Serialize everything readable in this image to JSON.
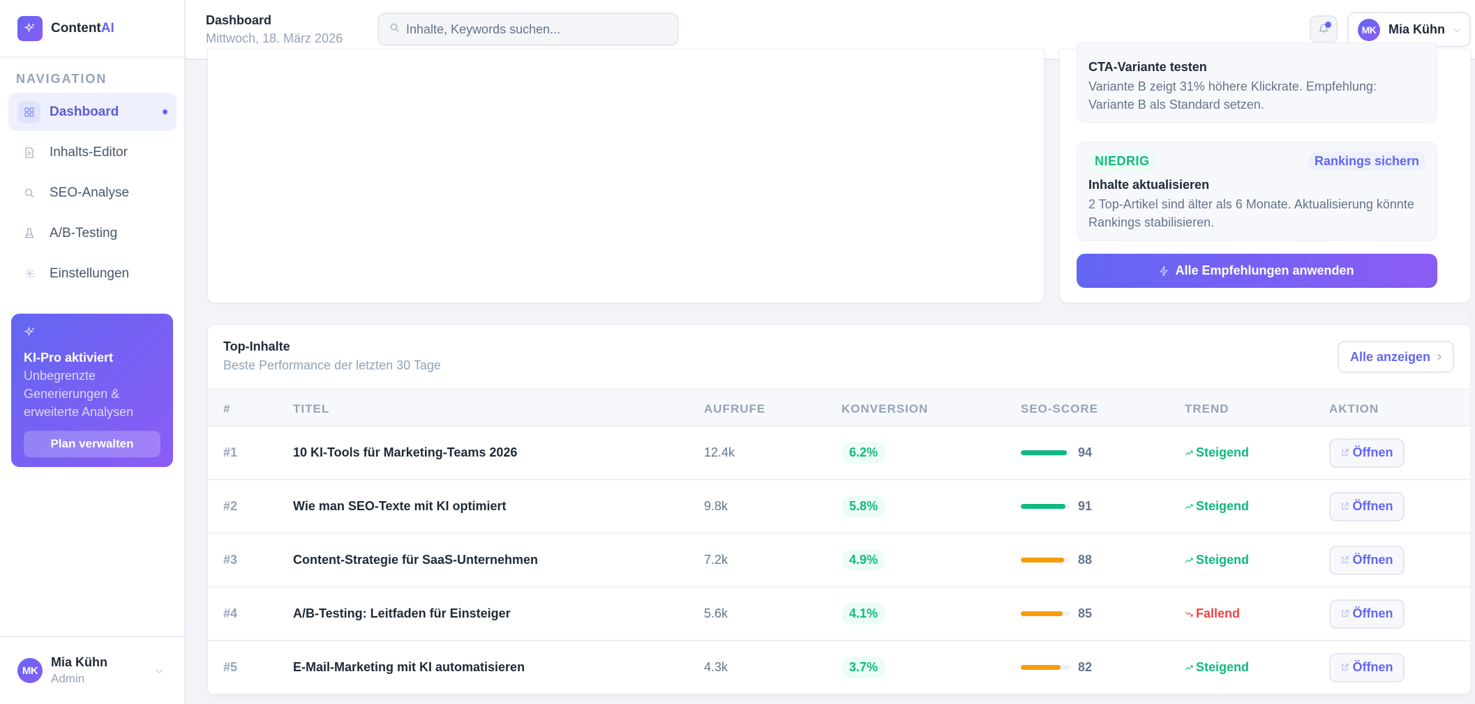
{
  "brand": {
    "name_main": "Content",
    "name_accent": "AI",
    "icon": "sparkles-icon"
  },
  "sidebar": {
    "section_label": "NAVIGATION",
    "items": [
      {
        "label": "Dashboard",
        "icon": "grid-icon",
        "active": true
      },
      {
        "label": "Inhalts-Editor",
        "icon": "document-icon",
        "active": false
      },
      {
        "label": "SEO-Analyse",
        "icon": "search-icon",
        "active": false
      },
      {
        "label": "A/B-Testing",
        "icon": "flask-icon",
        "active": false
      },
      {
        "label": "Einstellungen",
        "icon": "gear-icon",
        "active": false
      }
    ],
    "promo": {
      "title": "KI-Pro aktiviert",
      "text": "Unbegrenzte Generierungen & erweiterte Analysen",
      "button": "Plan verwalten"
    },
    "user": {
      "initials": "MK",
      "name": "Mia Kühn",
      "role": "Admin"
    }
  },
  "header": {
    "title": "Dashboard",
    "date": "Mittwoch, 18. März 2026",
    "search_placeholder": "Inhalte, Keywords suchen...",
    "search_value": "",
    "user": {
      "initials": "MK",
      "name": "Mia Kühn"
    },
    "notifications_unread": true
  },
  "recommendations": {
    "items": [
      {
        "title": "CTA-Variante testen",
        "text": "Variante B zeigt 31% höhere Klickrate. Empfehlung: Variante B als Standard setzen."
      },
      {
        "priority": "NIEDRIG",
        "tag": "Rankings sichern",
        "title": "Inhalte aktualisieren",
        "text": "2 Top-Artikel sind älter als 6 Monate. Aktualisierung könnte Rankings stabilisieren."
      }
    ],
    "apply_all": "Alle Empfehlungen anwenden"
  },
  "top_content": {
    "title": "Top-Inhalte",
    "subtitle": "Beste Performance der letzten 30 Tage",
    "view_all": "Alle anzeigen",
    "columns": [
      "#",
      "TITEL",
      "AUFRUFE",
      "KONVERSION",
      "SEO-SCORE",
      "TREND",
      "AKTION"
    ],
    "rows": [
      {
        "rank": "#1",
        "title": "10 KI-Tools für Marketing-Teams 2026",
        "views": "12.4k",
        "conversion": "6.2%",
        "seo_score": 94,
        "seo_color": "#10b981",
        "trend": "Steigend",
        "trend_dir": "up",
        "action": "Öffnen"
      },
      {
        "rank": "#2",
        "title": "Wie man SEO-Texte mit KI optimiert",
        "views": "9.8k",
        "conversion": "5.8%",
        "seo_score": 91,
        "seo_color": "#10b981",
        "trend": "Steigend",
        "trend_dir": "up",
        "action": "Öffnen"
      },
      {
        "rank": "#3",
        "title": "Content-Strategie für SaaS-Unternehmen",
        "views": "7.2k",
        "conversion": "4.9%",
        "seo_score": 88,
        "seo_color": "#f59e0b",
        "trend": "Steigend",
        "trend_dir": "up",
        "action": "Öffnen"
      },
      {
        "rank": "#4",
        "title": "A/B-Testing: Leitfaden für Einsteiger",
        "views": "5.6k",
        "conversion": "4.1%",
        "seo_score": 85,
        "seo_color": "#f59e0b",
        "trend": "Fallend",
        "trend_dir": "down",
        "action": "Öffnen"
      },
      {
        "rank": "#5",
        "title": "E-Mail-Marketing mit KI automatisieren",
        "views": "4.3k",
        "conversion": "3.7%",
        "seo_score": 82,
        "seo_color": "#f59e0b",
        "trend": "Steigend",
        "trend_dir": "up",
        "action": "Öffnen"
      }
    ]
  },
  "colors": {
    "accent": "#6366f1",
    "accent_2": "#8b5cf6",
    "success": "#10b981",
    "warning": "#f59e0b",
    "danger": "#ef4444"
  }
}
